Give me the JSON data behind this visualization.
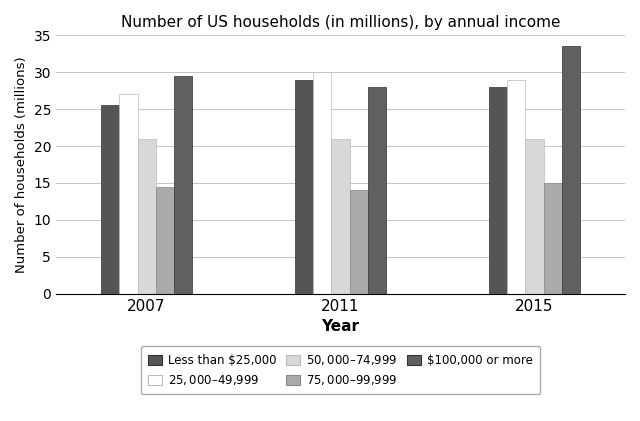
{
  "title": "Number of US households (in millions), by annual income",
  "xlabel": "Year",
  "ylabel": "Number of households (millions)",
  "years": [
    "2007",
    "2011",
    "2015"
  ],
  "categories": [
    "Less than $25,000",
    "$25,000–$49,999",
    "$50,000–$74,999",
    "$75,000–$99,999",
    "$100,000 or more"
  ],
  "values": {
    "Less than $25,000": [
      25.5,
      29.0,
      28.0
    ],
    "$25,000–$49,999": [
      27.0,
      30.0,
      29.0
    ],
    "$50,000–$74,999": [
      21.0,
      21.0,
      21.0
    ],
    "$75,000–$99,999": [
      14.5,
      14.0,
      15.0
    ],
    "$100,000 or more": [
      29.5,
      28.0,
      33.5
    ]
  },
  "colors": [
    "#555555",
    "#ffffff",
    "#d8d8d8",
    "#aaaaaa",
    "#606060"
  ],
  "edgecolors": [
    "#333333",
    "#bbbbbb",
    "#bbbbbb",
    "#888888",
    "#333333"
  ],
  "ylim": [
    0,
    35
  ],
  "yticks": [
    0,
    5,
    10,
    15,
    20,
    25,
    30,
    35
  ],
  "bar_width": 0.14,
  "group_centers": [
    1.0,
    2.5,
    4.0
  ],
  "figsize": [
    6.4,
    4.21
  ],
  "dpi": 100,
  "background_color": "#ffffff",
  "legend_ncol": 3
}
